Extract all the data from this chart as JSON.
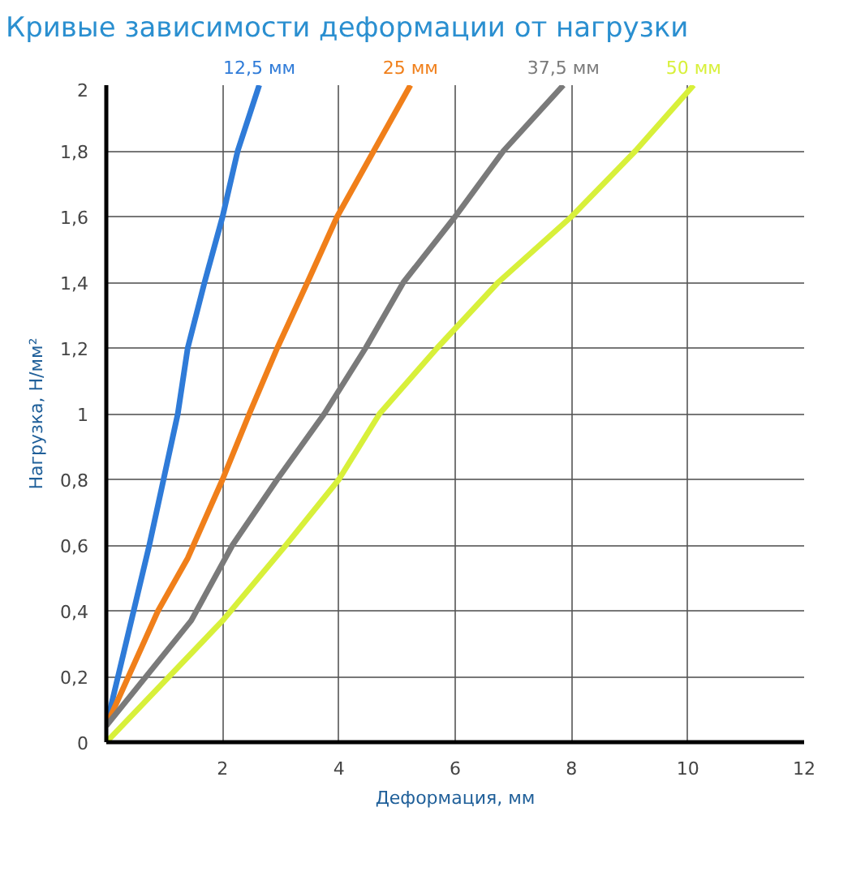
{
  "chart_data": {
    "type": "line",
    "title": "Кривые зависимости деформации от нагрузки",
    "xlabel": "Деформация, мм",
    "ylabel": "Нагрузка, Н/мм²",
    "series": [
      {
        "name": "12,5 мм",
        "color": "#2f7bd8",
        "x": [
          0,
          0.74,
          1.23,
          1.4,
          1.69,
          2,
          2.26,
          2.63
        ],
        "values": [
          0.05,
          0.6,
          1.0,
          1.2,
          1.4,
          1.6,
          1.8,
          2.0
        ]
      },
      {
        "name": "25 мм",
        "color": "#f07f1a",
        "x": [
          0,
          0.89,
          1.4,
          2,
          2.46,
          2.94,
          3.46,
          3.97,
          4.6,
          5.23
        ],
        "values": [
          0.05,
          0.4,
          0.56,
          0.8,
          1.0,
          1.2,
          1.4,
          1.6,
          1.8,
          2.0
        ]
      },
      {
        "name": "37,5 мм",
        "color": "#7a7a7a",
        "x": [
          0,
          1.46,
          2.17,
          2.94,
          3.75,
          4.46,
          5.11,
          6,
          6.83,
          7.86
        ],
        "values": [
          0.05,
          0.37,
          0.6,
          0.8,
          1.0,
          1.2,
          1.4,
          1.6,
          1.8,
          2.0
        ]
      },
      {
        "name": "50 мм",
        "color": "#d8f03a",
        "x": [
          0,
          2,
          3.09,
          4,
          4.7,
          5.69,
          6.74,
          8,
          9.1,
          10.1
        ],
        "values": [
          0,
          0.37,
          0.6,
          0.8,
          1.0,
          1.2,
          1.4,
          1.6,
          1.8,
          2.0
        ]
      }
    ],
    "xlim": [
      0,
      12
    ],
    "ylim": [
      0,
      2
    ],
    "xticks": [
      2,
      4,
      6,
      8,
      10,
      12
    ],
    "yticks": [
      0,
      {
        "value": 0.2,
        "label": "0,2"
      },
      {
        "value": 0.4,
        "label": "0,4"
      },
      {
        "value": 0.6,
        "label": "0,6"
      },
      {
        "value": 0.8,
        "label": "0,8"
      },
      1,
      {
        "value": 1.2,
        "label": "1,2"
      },
      {
        "value": 1.4,
        "label": "1,4"
      },
      {
        "value": 1.6,
        "label": "1,6"
      },
      {
        "value": 1.8,
        "label": "1,8"
      },
      2
    ],
    "grid": true,
    "marker": "none",
    "line_style": "solid"
  }
}
